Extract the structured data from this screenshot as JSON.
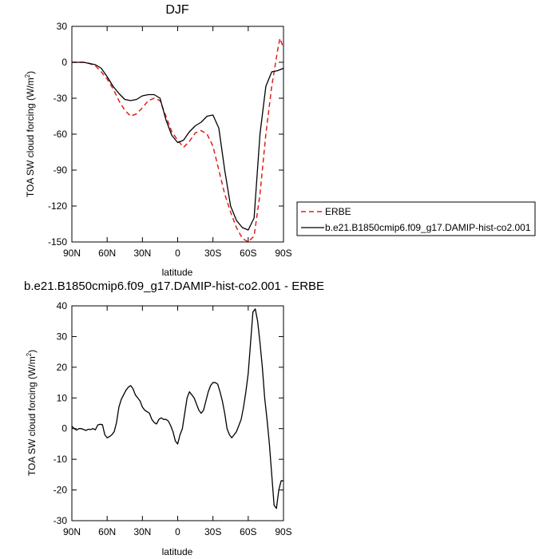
{
  "chart_data": [
    {
      "type": "line",
      "title": "DJF",
      "xlabel": "latitude",
      "ylabel": "TOA SW cloud forcing (W/m²)",
      "ylabel_main": "TOA SW cloud forcing (W/m",
      "ylabel_sup": "2",
      "ylabel_close": ")",
      "xlim": [
        90,
        -90
      ],
      "ylim": [
        -150,
        30
      ],
      "xticks": [
        90,
        60,
        30,
        0,
        -30,
        -60,
        -90
      ],
      "xtick_labels": [
        "90N",
        "60N",
        "30N",
        "0",
        "30S",
        "60S",
        "90S"
      ],
      "yticks": [
        30,
        0,
        -30,
        -60,
        -90,
        -120,
        -150
      ],
      "ytick_labels": [
        "30",
        "0",
        "-30",
        "-60",
        "-90",
        "-120",
        "-150"
      ],
      "legend": {
        "placement": "right",
        "entries": [
          "ERBE",
          "b.e21.B1850cmip6.f09_g17.DAMIP-hist-co2.001"
        ]
      },
      "series": [
        {
          "name": "ERBE",
          "color": "#e0201b",
          "style": "dashed",
          "x": [
            90,
            85,
            80,
            75,
            70,
            65,
            60,
            55,
            50,
            45,
            40,
            35,
            30,
            25,
            20,
            15,
            10,
            5,
            0,
            -5,
            -10,
            -15,
            -20,
            -25,
            -30,
            -35,
            -40,
            -45,
            -50,
            -55,
            -60,
            -65,
            -70,
            -75,
            -80,
            -85,
            -87,
            -90
          ],
          "values": [
            0,
            0,
            0,
            -1,
            -3,
            -8,
            -14,
            -22,
            -32,
            -40,
            -45,
            -43,
            -38,
            -32,
            -30,
            -32,
            -45,
            -58,
            -65,
            -71,
            -66,
            -59,
            -57,
            -60,
            -70,
            -90,
            -110,
            -125,
            -138,
            -147,
            -150,
            -145,
            -110,
            -60,
            -20,
            10,
            20,
            12
          ]
        },
        {
          "name": "b.e21.B1850cmip6.f09_g17.DAMIP-hist-co2.001",
          "color": "#000000",
          "style": "solid",
          "x": [
            90,
            85,
            80,
            75,
            70,
            65,
            60,
            55,
            50,
            45,
            40,
            35,
            30,
            25,
            20,
            15,
            10,
            5,
            0,
            -5,
            -10,
            -15,
            -20,
            -25,
            -30,
            -35,
            -40,
            -45,
            -50,
            -55,
            -60,
            -65,
            -70,
            -75,
            -80,
            -85,
            -90
          ],
          "values": [
            0,
            0,
            0,
            -1,
            -2,
            -5,
            -12,
            -20,
            -26,
            -31,
            -32,
            -31,
            -28,
            -27,
            -27,
            -30,
            -48,
            -61,
            -67,
            -65,
            -58,
            -53,
            -50,
            -45,
            -44,
            -55,
            -90,
            -120,
            -132,
            -138,
            -140,
            -130,
            -60,
            -20,
            -8,
            -7,
            -5
          ]
        }
      ]
    },
    {
      "type": "line",
      "title": "b.e21.B1850cmip6.f09_g17.DAMIP-hist-co2.001 - ERBE",
      "xlabel": "latitude",
      "ylabel": "TOA SW cloud forcing (W/m²)",
      "ylabel_main": "TOA SW cloud forcing (W/m",
      "ylabel_sup": "2",
      "ylabel_close": ")",
      "xlim": [
        90,
        -90
      ],
      "ylim": [
        -30,
        40
      ],
      "xticks": [
        90,
        60,
        30,
        0,
        -30,
        -60,
        -90
      ],
      "xtick_labels": [
        "90N",
        "60N",
        "30N",
        "0",
        "30S",
        "60S",
        "90S"
      ],
      "yticks": [
        40,
        30,
        20,
        10,
        0,
        -10,
        -20,
        -30
      ],
      "ytick_labels": [
        "40",
        "30",
        "20",
        "10",
        "0",
        "-10",
        "-20",
        "-30"
      ],
      "series": [
        {
          "color": "#000000",
          "style": "solid",
          "x": [
            90,
            88,
            86,
            84,
            82,
            80,
            78,
            76,
            74,
            72,
            70,
            68,
            66,
            64,
            62,
            60,
            58,
            56,
            54,
            52,
            50,
            48,
            46,
            44,
            42,
            40,
            38,
            36,
            34,
            32,
            30,
            28,
            26,
            24,
            22,
            20,
            18,
            16,
            14,
            12,
            10,
            8,
            6,
            4,
            2,
            0,
            -2,
            -4,
            -6,
            -8,
            -10,
            -12,
            -14,
            -16,
            -18,
            -20,
            -22,
            -24,
            -26,
            -28,
            -30,
            -32,
            -34,
            -36,
            -38,
            -40,
            -42,
            -44,
            -46,
            -48,
            -50,
            -52,
            -54,
            -56,
            -58,
            -60,
            -62,
            -64,
            -66,
            -68,
            -70,
            -72,
            -74,
            -76,
            -78,
            -80,
            -82,
            -84,
            -86,
            -88,
            -90
          ],
          "values": [
            0.8,
            0,
            -0.5,
            0,
            0,
            -0.3,
            -0.6,
            -0.2,
            -0.3,
            0,
            -0.4,
            1.2,
            1.4,
            1.3,
            -2,
            -3,
            -2.6,
            -2,
            -1,
            2,
            7,
            9.5,
            11,
            12.5,
            13.5,
            14,
            13,
            11,
            10,
            9,
            7,
            6,
            5.5,
            5,
            3,
            2,
            1.5,
            3,
            3.5,
            3,
            3,
            2.5,
            1,
            -1,
            -4,
            -5,
            -2,
            0,
            5,
            10,
            12,
            11,
            10,
            8,
            6,
            5,
            6,
            9,
            12,
            14,
            15,
            15,
            14.5,
            12,
            9,
            5,
            0,
            -2,
            -3,
            -2,
            -1,
            1,
            3,
            7,
            12,
            18,
            28,
            38,
            39,
            35,
            28,
            20,
            10,
            3,
            -5,
            -15,
            -25,
            -26,
            -20,
            -17,
            -17
          ]
        }
      ]
    }
  ]
}
